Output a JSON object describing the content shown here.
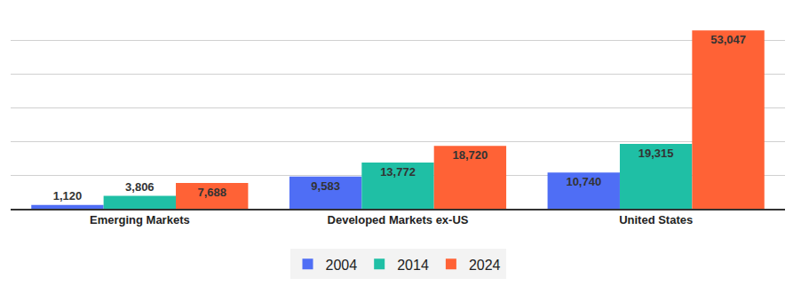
{
  "chart_data": {
    "type": "bar",
    "categories": [
      "Emerging Markets",
      "Developed Markets ex-US",
      "United States"
    ],
    "series": [
      {
        "name": "2004",
        "color": "#4f6ef5",
        "values": [
          1120,
          9583,
          10740
        ],
        "value_labels": [
          "1,120",
          "9,583",
          "10,740"
        ]
      },
      {
        "name": "2014",
        "color": "#1fbfa5",
        "values": [
          3806,
          13772,
          19315
        ],
        "value_labels": [
          "3,806",
          "13,772",
          "19,315"
        ]
      },
      {
        "name": "2024",
        "color": "#ff6236",
        "values": [
          7688,
          18720,
          53047
        ],
        "value_labels": [
          "7,688",
          "18,720",
          "53,047"
        ]
      }
    ],
    "ylim": [
      0,
      60000
    ],
    "yticks": [
      0,
      10000,
      20000,
      30000,
      40000,
      50000,
      60000
    ],
    "grid": true,
    "legend": "bottom",
    "data_labels": true,
    "tick_labels": "x"
  }
}
